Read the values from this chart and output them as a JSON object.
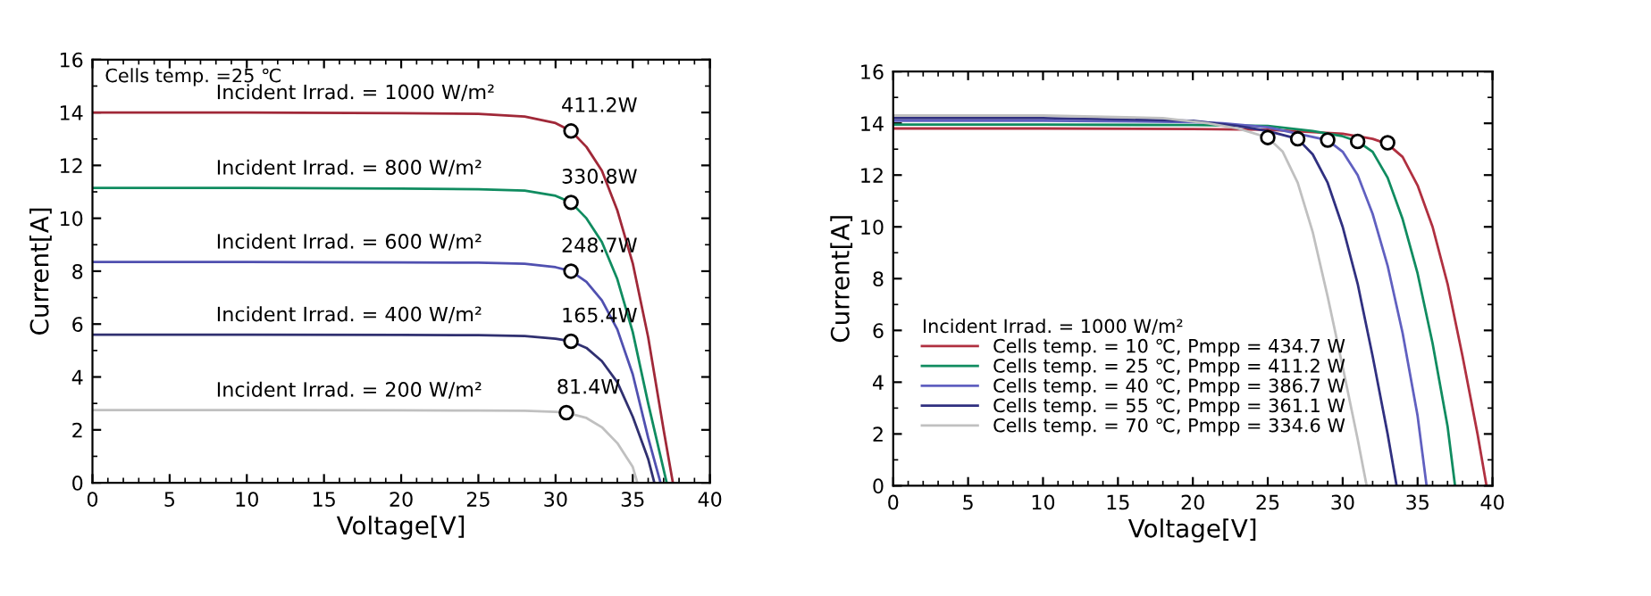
{
  "chart_data": [
    {
      "type": "line",
      "xlabel": "Voltage[V]",
      "ylabel": "Current[A]",
      "xlim": [
        0,
        40
      ],
      "ylim": [
        0,
        16
      ],
      "xticks": [
        0,
        5,
        10,
        15,
        20,
        25,
        30,
        35,
        40
      ],
      "yticks": [
        0,
        2,
        4,
        6,
        8,
        10,
        12,
        14,
        16
      ],
      "grid": false,
      "legend": false,
      "marker": "none",
      "line_style": "solid",
      "annotations": [
        "Cells temp. =25 ℃",
        "411.2W",
        "330.8W",
        "248.7W",
        "165.4W",
        "81.4W"
      ],
      "series": [
        {
          "name": "Incident Irrad. = 1000 W/m²",
          "color": "#a02838",
          "x": [
            0,
            10,
            20,
            25,
            28,
            30,
            31,
            32,
            33,
            34,
            35,
            36,
            37,
            37.6
          ],
          "values": [
            14.0,
            14.0,
            13.97,
            13.95,
            13.85,
            13.6,
            13.3,
            12.7,
            11.8,
            10.3,
            8.3,
            5.5,
            2.0,
            0
          ]
        },
        {
          "name": "Incident Irrad. = 800 W/m²",
          "color": "#108c60",
          "x": [
            0,
            10,
            20,
            25,
            28,
            30,
            31,
            32,
            33,
            34,
            35,
            36,
            37.2
          ],
          "values": [
            11.15,
            11.15,
            11.12,
            11.1,
            11.05,
            10.85,
            10.6,
            10.0,
            9.1,
            7.7,
            5.7,
            3.0,
            0
          ]
        },
        {
          "name": "Incident Irrad. = 600 W/m²",
          "color": "#5050b0",
          "x": [
            0,
            10,
            20,
            25,
            28,
            30,
            31,
            32,
            33,
            34,
            35,
            36,
            36.8
          ],
          "values": [
            8.35,
            8.35,
            8.33,
            8.32,
            8.28,
            8.15,
            8.0,
            7.6,
            6.9,
            5.8,
            4.1,
            1.7,
            0
          ]
        },
        {
          "name": "Incident Irrad. = 400 W/m²",
          "color": "#303070",
          "x": [
            0,
            10,
            20,
            25,
            28,
            30,
            31,
            32,
            33,
            34,
            35,
            36,
            36.4
          ],
          "values": [
            5.6,
            5.6,
            5.59,
            5.58,
            5.55,
            5.45,
            5.35,
            5.1,
            4.6,
            3.8,
            2.5,
            0.9,
            0
          ]
        },
        {
          "name": "Incident Irrad. = 200 W/m²",
          "color": "#c0c0c0",
          "x": [
            0,
            10,
            20,
            25,
            28,
            30,
            30.7,
            32,
            33,
            34,
            35,
            35.3
          ],
          "values": [
            2.75,
            2.75,
            2.74,
            2.73,
            2.72,
            2.68,
            2.65,
            2.45,
            2.1,
            1.5,
            0.6,
            0
          ]
        },
        {
          "type": "scatter",
          "marker": "circle",
          "color": "#000000",
          "x": [
            31,
            31,
            31,
            31,
            30.7
          ],
          "values": [
            13.3,
            10.6,
            8.0,
            5.35,
            2.65
          ]
        }
      ]
    },
    {
      "type": "line",
      "xlabel": "Voltage[V]",
      "ylabel": "Current[A]",
      "xlim": [
        0,
        40
      ],
      "ylim": [
        0,
        16
      ],
      "xticks": [
        0,
        5,
        10,
        15,
        20,
        25,
        30,
        35,
        40
      ],
      "yticks": [
        0,
        2,
        4,
        6,
        8,
        10,
        12,
        14,
        16
      ],
      "grid": false,
      "legend": "bottom left",
      "legend_title": "Incident Irrad. = 1000 W/m²",
      "marker": "none",
      "line_style": "solid",
      "series": [
        {
          "name": "Cells temp. = 10 ℃, Pmpp = 434.7 W",
          "color": "#b03040",
          "x": [
            0,
            10,
            20,
            25,
            30,
            32,
            33,
            34,
            35,
            36,
            37,
            38,
            39,
            39.6
          ],
          "values": [
            13.8,
            13.8,
            13.78,
            13.75,
            13.6,
            13.4,
            13.2,
            12.7,
            11.6,
            10.0,
            7.8,
            5.0,
            2.0,
            0
          ]
        },
        {
          "name": "Cells temp. = 25 ℃, Pmpp = 411.2 W",
          "color": "#108c60",
          "x": [
            0,
            10,
            20,
            25,
            28,
            30,
            31,
            32,
            33,
            34,
            35,
            36,
            37,
            37.5
          ],
          "values": [
            13.95,
            13.95,
            13.93,
            13.9,
            13.7,
            13.5,
            13.3,
            12.9,
            11.9,
            10.3,
            8.2,
            5.5,
            2.3,
            0
          ]
        },
        {
          "name": "Cells temp. = 40 ℃, Pmpp = 386.7 W",
          "color": "#6060c0",
          "x": [
            0,
            10,
            20,
            22,
            25,
            27,
            29,
            30,
            31,
            32,
            33,
            34,
            35,
            35.6
          ],
          "values": [
            14.1,
            14.1,
            14.05,
            14.0,
            13.85,
            13.6,
            13.35,
            12.9,
            12.0,
            10.5,
            8.5,
            5.9,
            2.7,
            0
          ]
        },
        {
          "name": "Cells temp. = 55 ℃, Pmpp = 361.1 W",
          "color": "#303080",
          "x": [
            0,
            10,
            20,
            23,
            25,
            27,
            28,
            29,
            30,
            31,
            32,
            33,
            33.6
          ],
          "values": [
            14.2,
            14.2,
            14.1,
            13.9,
            13.7,
            13.4,
            12.8,
            11.7,
            10.0,
            7.8,
            5.0,
            2.0,
            0
          ]
        },
        {
          "name": "Cells temp. = 70 ℃, Pmpp = 334.6 W",
          "color": "#c0c0c0",
          "x": [
            0,
            10,
            18,
            21,
            23,
            25,
            26,
            27,
            28,
            29,
            30,
            31,
            31.6
          ],
          "values": [
            14.3,
            14.3,
            14.2,
            14.0,
            13.8,
            13.45,
            12.9,
            11.7,
            9.8,
            7.3,
            4.6,
            1.8,
            0
          ]
        },
        {
          "type": "scatter",
          "marker": "circle",
          "color": "#000000",
          "x": [
            33,
            31,
            29,
            27,
            25
          ],
          "values": [
            13.25,
            13.3,
            13.35,
            13.4,
            13.45
          ]
        }
      ]
    }
  ]
}
